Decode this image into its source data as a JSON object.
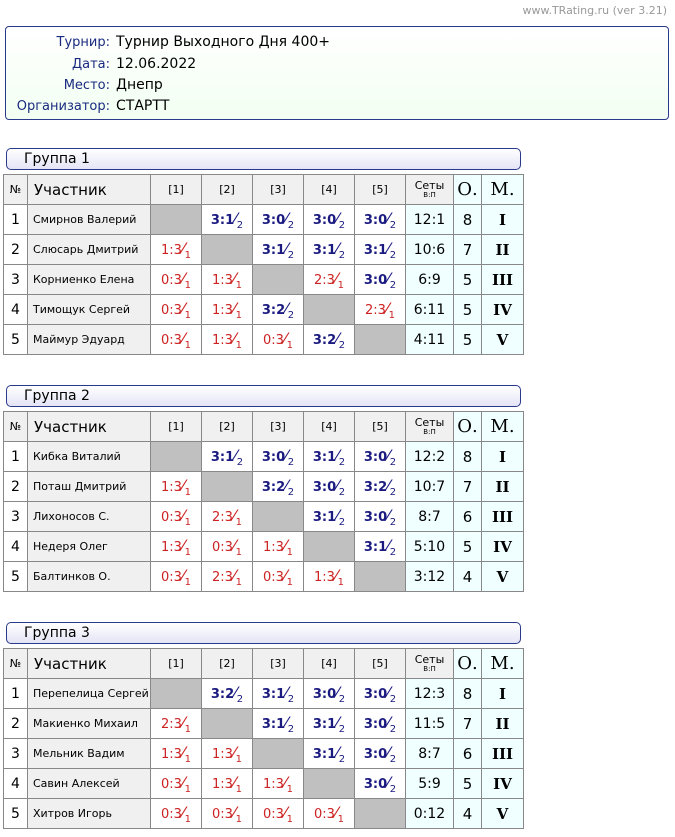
{
  "credit": "www.TRating.ru (ver 3.21)",
  "info": [
    {
      "label": "Турнир:",
      "value": "Турнир Выходного Дня 400+"
    },
    {
      "label": "Дата:",
      "value": "12.06.2022"
    },
    {
      "label": "Место:",
      "value": "Днепр"
    },
    {
      "label": "Организатор:",
      "value": "СТАРТТ"
    }
  ],
  "colors": {
    "win": "#1a1a80",
    "loss": "#cc2222",
    "diagonal": "#c0c0c0"
  },
  "headers": {
    "num": "№",
    "name": "Участник",
    "cols": [
      "[1]",
      "[2]",
      "[3]",
      "[4]",
      "[5]"
    ],
    "sets": "Сеты",
    "sets_sub": "В:П",
    "points": "О.",
    "place": "М."
  },
  "groups": [
    {
      "title": "Группа 1",
      "rows": [
        {
          "n": "1",
          "name": "Смирнов Валерий",
          "res": [
            null,
            [
              "3:1",
              "2"
            ],
            [
              "3:0",
              "2"
            ],
            [
              "3:0",
              "2"
            ],
            [
              "3:0",
              "2"
            ]
          ],
          "sets": "12:1",
          "pts": "8",
          "place": "I"
        },
        {
          "n": "2",
          "name": "Слюсарь Дмитрий",
          "res": [
            [
              "1:3",
              "1"
            ],
            null,
            [
              "3:1",
              "2"
            ],
            [
              "3:1",
              "2"
            ],
            [
              "3:1",
              "2"
            ]
          ],
          "sets": "10:6",
          "pts": "7",
          "place": "II"
        },
        {
          "n": "3",
          "name": "Корниенко Елена",
          "res": [
            [
              "0:3",
              "1"
            ],
            [
              "1:3",
              "1"
            ],
            null,
            [
              "2:3",
              "1"
            ],
            [
              "3:0",
              "2"
            ]
          ],
          "sets": "6:9",
          "pts": "5",
          "place": "III"
        },
        {
          "n": "4",
          "name": "Тимощук Сергей",
          "res": [
            [
              "0:3",
              "1"
            ],
            [
              "1:3",
              "1"
            ],
            [
              "3:2",
              "2"
            ],
            null,
            [
              "2:3",
              "1"
            ]
          ],
          "sets": "6:11",
          "pts": "5",
          "place": "IV"
        },
        {
          "n": "5",
          "name": "Маймур Эдуард",
          "res": [
            [
              "0:3",
              "1"
            ],
            [
              "1:3",
              "1"
            ],
            [
              "0:3",
              "1"
            ],
            [
              "3:2",
              "2"
            ],
            null
          ],
          "sets": "4:11",
          "pts": "5",
          "place": "V"
        }
      ]
    },
    {
      "title": "Группа 2",
      "rows": [
        {
          "n": "1",
          "name": "Кибка Виталий",
          "res": [
            null,
            [
              "3:1",
              "2"
            ],
            [
              "3:0",
              "2"
            ],
            [
              "3:1",
              "2"
            ],
            [
              "3:0",
              "2"
            ]
          ],
          "sets": "12:2",
          "pts": "8",
          "place": "I"
        },
        {
          "n": "2",
          "name": "Поташ Дмитрий",
          "res": [
            [
              "1:3",
              "1"
            ],
            null,
            [
              "3:2",
              "2"
            ],
            [
              "3:0",
              "2"
            ],
            [
              "3:2",
              "2"
            ]
          ],
          "sets": "10:7",
          "pts": "7",
          "place": "II"
        },
        {
          "n": "3",
          "name": "Лихоносов С.",
          "res": [
            [
              "0:3",
              "1"
            ],
            [
              "2:3",
              "1"
            ],
            null,
            [
              "3:1",
              "2"
            ],
            [
              "3:0",
              "2"
            ]
          ],
          "sets": "8:7",
          "pts": "6",
          "place": "III"
        },
        {
          "n": "4",
          "name": "Недеря Олег",
          "res": [
            [
              "1:3",
              "1"
            ],
            [
              "0:3",
              "1"
            ],
            [
              "1:3",
              "1"
            ],
            null,
            [
              "3:1",
              "2"
            ]
          ],
          "sets": "5:10",
          "pts": "5",
          "place": "IV"
        },
        {
          "n": "5",
          "name": "Балтинков О.",
          "res": [
            [
              "0:3",
              "1"
            ],
            [
              "2:3",
              "1"
            ],
            [
              "0:3",
              "1"
            ],
            [
              "1:3",
              "1"
            ],
            null
          ],
          "sets": "3:12",
          "pts": "4",
          "place": "V"
        }
      ]
    },
    {
      "title": "Группа 3",
      "rows": [
        {
          "n": "1",
          "name": "Перепелица Сергей",
          "res": [
            null,
            [
              "3:2",
              "2"
            ],
            [
              "3:1",
              "2"
            ],
            [
              "3:0",
              "2"
            ],
            [
              "3:0",
              "2"
            ]
          ],
          "sets": "12:3",
          "pts": "8",
          "place": "I"
        },
        {
          "n": "2",
          "name": "Макиенко Михаил",
          "res": [
            [
              "2:3",
              "1"
            ],
            null,
            [
              "3:1",
              "2"
            ],
            [
              "3:1",
              "2"
            ],
            [
              "3:0",
              "2"
            ]
          ],
          "sets": "11:5",
          "pts": "7",
          "place": "II"
        },
        {
          "n": "3",
          "name": "Мельник Вадим",
          "res": [
            [
              "1:3",
              "1"
            ],
            [
              "1:3",
              "1"
            ],
            null,
            [
              "3:1",
              "2"
            ],
            [
              "3:0",
              "2"
            ]
          ],
          "sets": "8:7",
          "pts": "6",
          "place": "III"
        },
        {
          "n": "4",
          "name": "Савин Алексей",
          "res": [
            [
              "0:3",
              "1"
            ],
            [
              "1:3",
              "1"
            ],
            [
              "1:3",
              "1"
            ],
            null,
            [
              "3:0",
              "2"
            ]
          ],
          "sets": "5:9",
          "pts": "5",
          "place": "IV"
        },
        {
          "n": "5",
          "name": "Хитров Игорь",
          "res": [
            [
              "0:3",
              "1"
            ],
            [
              "0:3",
              "1"
            ],
            [
              "0:3",
              "1"
            ],
            [
              "0:3",
              "1"
            ],
            null
          ],
          "sets": "0:12",
          "pts": "4",
          "place": "V"
        }
      ]
    }
  ]
}
